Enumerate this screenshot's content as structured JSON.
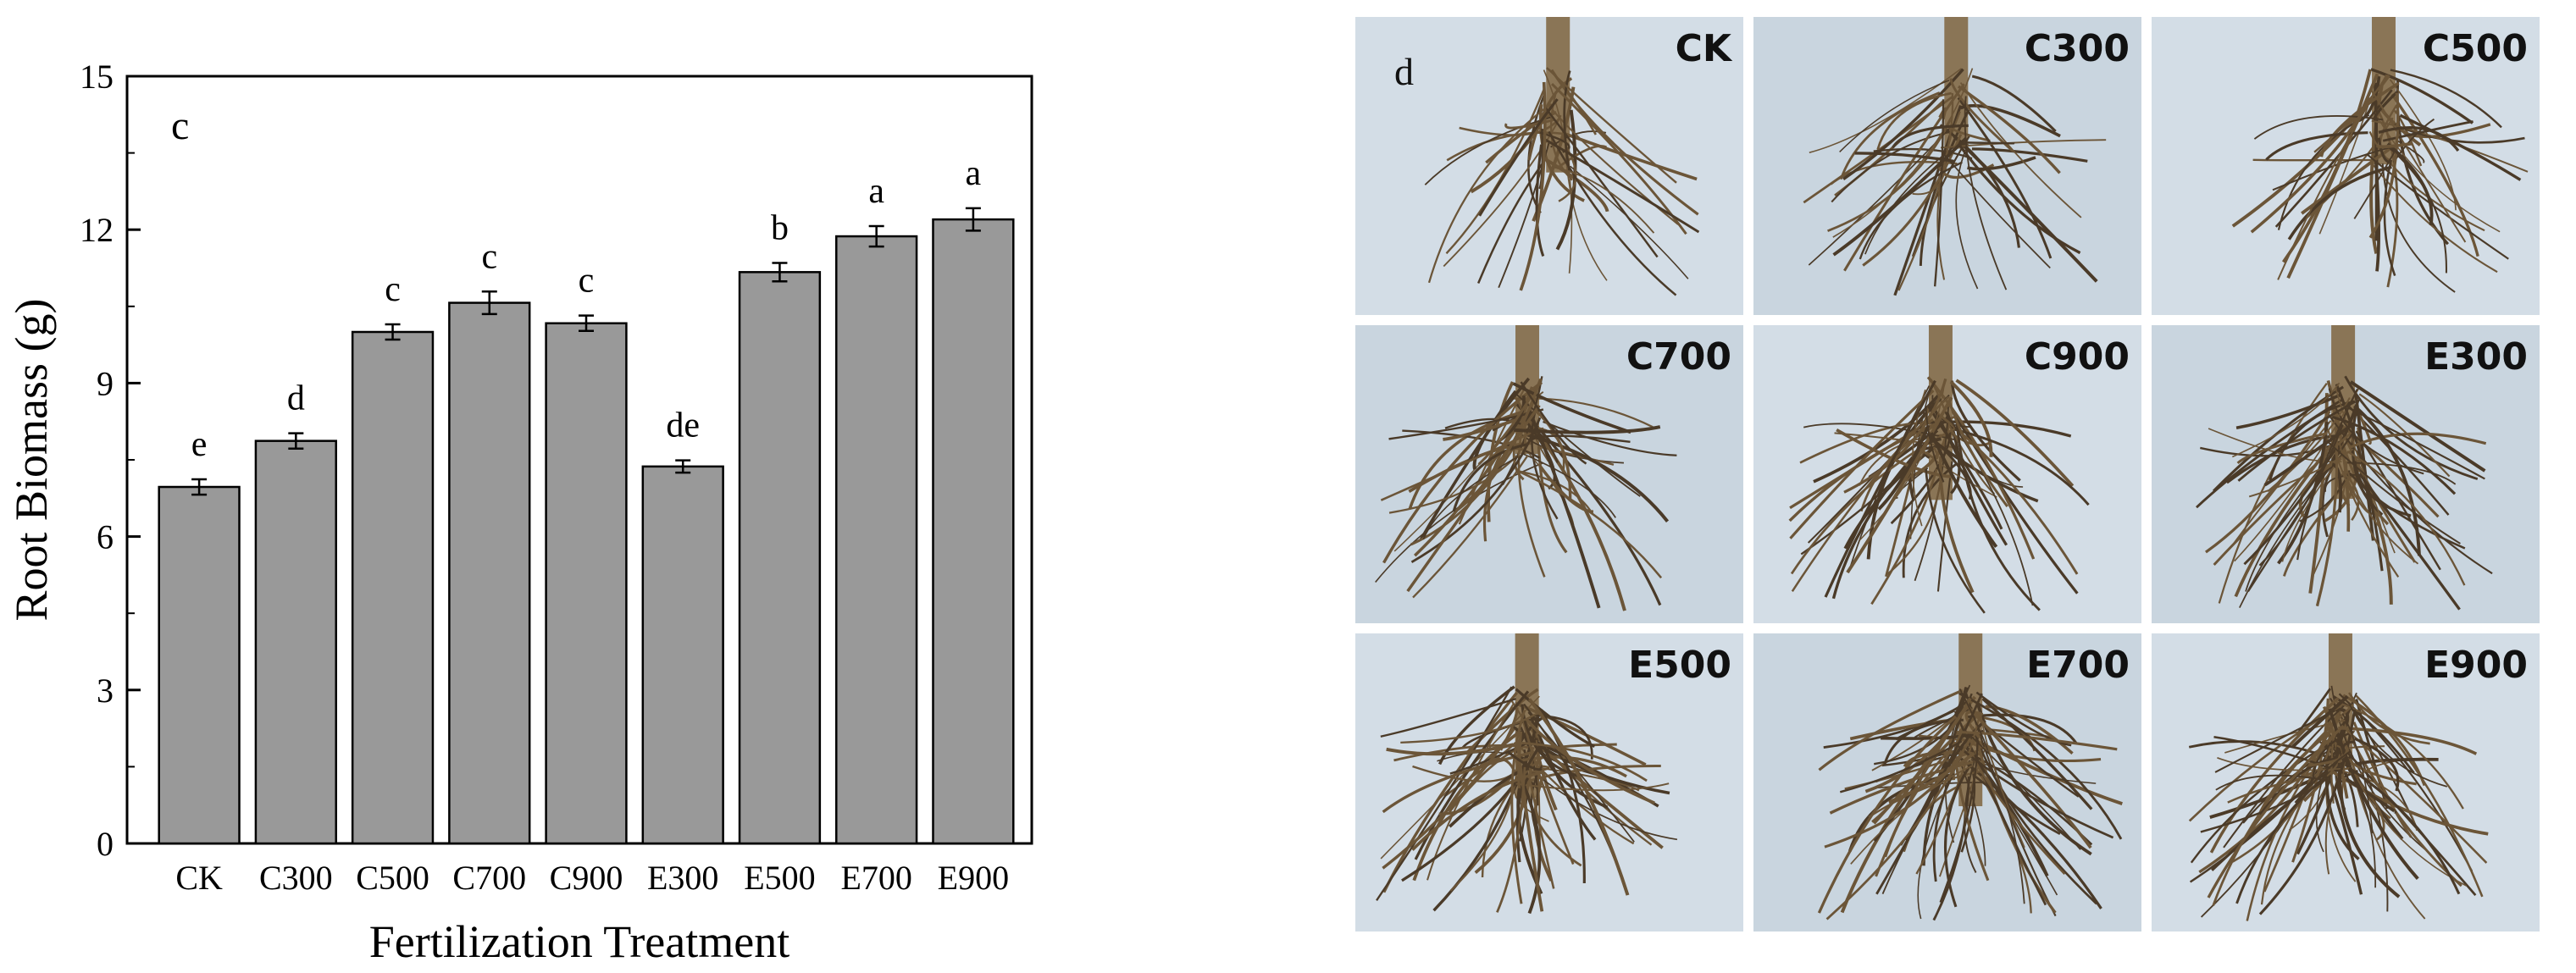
{
  "chart_data": {
    "type": "bar",
    "panel_label": "c",
    "categories": [
      "CK",
      "C300",
      "C500",
      "C700",
      "C900",
      "E300",
      "E500",
      "E700",
      "E900"
    ],
    "values": [
      6.97,
      7.87,
      10.0,
      10.57,
      10.17,
      7.37,
      11.17,
      11.87,
      12.2
    ],
    "errors": [
      0.15,
      0.15,
      0.15,
      0.22,
      0.15,
      0.12,
      0.18,
      0.2,
      0.22
    ],
    "significance_letters": [
      "e",
      "d",
      "c",
      "c",
      "c",
      "de",
      "b",
      "a",
      "a"
    ],
    "xlabel": "Fertilization Treatment",
    "ylabel": "Root Biomass (g)",
    "ylim": [
      0,
      15
    ],
    "yticks": [
      0,
      3,
      6,
      9,
      12,
      15
    ],
    "grid": false,
    "bar_color": "#999999"
  },
  "photos": {
    "panel_label": "d",
    "tiles": [
      {
        "label": "CK"
      },
      {
        "label": "C300"
      },
      {
        "label": "C500"
      },
      {
        "label": "C700"
      },
      {
        "label": "C900"
      },
      {
        "label": "E300"
      },
      {
        "label": "E500"
      },
      {
        "label": "E700"
      },
      {
        "label": "E900"
      }
    ]
  }
}
